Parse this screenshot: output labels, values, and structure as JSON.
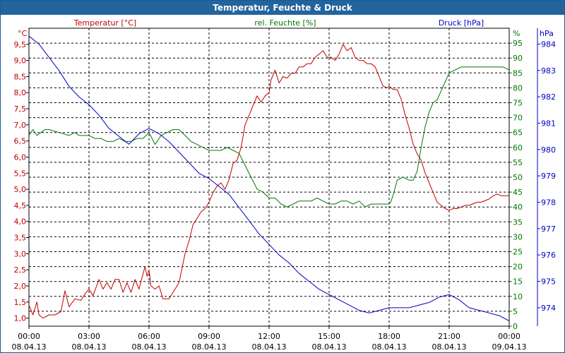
{
  "window": {
    "title": "Temperatur, Feuchte & Druck"
  },
  "colors": {
    "temperature": "#c00000",
    "humidity": "#007800",
    "pressure": "#0000c8"
  },
  "chart_data": {
    "type": "line",
    "title": "Temperatur, Feuchte & Druck",
    "legend": {
      "temperature": "Temperatur [°C]",
      "humidity": "rel. Feuchte [%]",
      "pressure": "Druck [hPa]"
    },
    "axes": {
      "left": {
        "unit": "°C",
        "min": 0.75,
        "max": 10.0,
        "ticks": [
          "1,0",
          "1,5",
          "2,0",
          "2,5",
          "3,0",
          "3,5",
          "4,0",
          "4,5",
          "5,0",
          "5,5",
          "6,0",
          "6,5",
          "7,0",
          "7,5",
          "8,0",
          "8,5",
          "9,0",
          "9,5"
        ]
      },
      "right1": {
        "unit": "%",
        "min": 0,
        "max": 100,
        "ticks": [
          "0",
          "5",
          "10",
          "15",
          "20",
          "25",
          "30",
          "35",
          "40",
          "45",
          "50",
          "55",
          "60",
          "65",
          "70",
          "75",
          "80",
          "85",
          "90",
          "95"
        ]
      },
      "right2": {
        "unit": "hPa",
        "min": 973.3,
        "max": 984.6,
        "ticks": [
          "974",
          "975",
          "976",
          "977",
          "978",
          "979",
          "980",
          "981",
          "982",
          "983",
          "984"
        ]
      },
      "x": {
        "min": 0,
        "max": 24,
        "ticks": [
          {
            "time": "00:00",
            "date": "08.04.13"
          },
          {
            "time": "03:00",
            "date": "08.04.13"
          },
          {
            "time": "06:00",
            "date": "08.04.13"
          },
          {
            "time": "09:00",
            "date": "08.04.13"
          },
          {
            "time": "12:00",
            "date": "08.04.13"
          },
          {
            "time": "15:00",
            "date": "08.04.13"
          },
          {
            "time": "18:00",
            "date": "08.04.13"
          },
          {
            "time": "21:00",
            "date": "08.04.13"
          },
          {
            "time": "00:00",
            "date": "09.04.13"
          }
        ]
      }
    },
    "series": [
      {
        "name": "Temperatur [°C]",
        "axis": "left",
        "color": "#c00000",
        "x": [
          0,
          0.2,
          0.4,
          0.5,
          0.7,
          1.0,
          1.3,
          1.6,
          1.8,
          2.0,
          2.3,
          2.6,
          2.8,
          3.0,
          3.2,
          3.5,
          3.7,
          3.9,
          4.1,
          4.3,
          4.5,
          4.7,
          4.9,
          5.1,
          5.3,
          5.5,
          5.8,
          5.9,
          6.0,
          6.1,
          6.3,
          6.5,
          6.7,
          7.0,
          7.2,
          7.5,
          7.8,
          8.0,
          8.2,
          8.4,
          8.6,
          8.8,
          9.0,
          9.2,
          9.4,
          9.6,
          9.8,
          10.0,
          10.2,
          10.4,
          10.6,
          10.8,
          11.0,
          11.2,
          11.4,
          11.6,
          11.8,
          12.0,
          12.1,
          12.3,
          12.5,
          12.7,
          12.9,
          13.1,
          13.3,
          13.5,
          13.7,
          13.9,
          14.1,
          14.3,
          14.5,
          14.7,
          14.9,
          15.1,
          15.3,
          15.5,
          15.7,
          15.9,
          16.1,
          16.3,
          16.5,
          16.7,
          16.9,
          17.1,
          17.3,
          17.5,
          17.7,
          17.9,
          18.0,
          18.2,
          18.4,
          18.6,
          18.8,
          19.0,
          19.2,
          19.4,
          19.6,
          19.8,
          20.0,
          20.2,
          20.4,
          20.6,
          20.8,
          21.0,
          21.2,
          21.4,
          21.6,
          21.8,
          22.0,
          22.2,
          22.4,
          22.6,
          22.8,
          23.0,
          23.2,
          23.4,
          23.6,
          23.8,
          24.0
        ],
        "y": [
          1.4,
          1.1,
          1.5,
          1.1,
          1.0,
          1.1,
          1.1,
          1.2,
          1.85,
          1.35,
          1.6,
          1.55,
          1.75,
          1.9,
          1.7,
          2.2,
          1.9,
          2.1,
          1.9,
          2.2,
          2.2,
          1.8,
          2.1,
          1.8,
          2.2,
          1.9,
          2.6,
          2.3,
          2.5,
          2.0,
          1.9,
          2.0,
          1.6,
          1.6,
          1.8,
          2.1,
          3.0,
          3.4,
          3.9,
          4.1,
          4.3,
          4.4,
          4.6,
          4.9,
          5.1,
          5.2,
          5.0,
          5.3,
          5.8,
          5.9,
          6.3,
          7.0,
          7.3,
          7.6,
          7.9,
          7.7,
          7.9,
          8.0,
          8.4,
          8.7,
          8.3,
          8.5,
          8.45,
          8.6,
          8.6,
          8.8,
          8.8,
          8.9,
          8.9,
          9.1,
          9.2,
          9.3,
          9.1,
          9.1,
          9.0,
          9.2,
          9.5,
          9.3,
          9.4,
          9.1,
          9.0,
          9.0,
          8.9,
          8.9,
          8.8,
          8.5,
          8.2,
          8.15,
          8.2,
          8.1,
          8.1,
          7.8,
          7.3,
          6.9,
          6.4,
          6.1,
          5.9,
          5.5,
          5.2,
          4.9,
          4.6,
          4.5,
          4.4,
          4.35,
          4.4,
          4.4,
          4.45,
          4.5,
          4.5,
          4.55,
          4.6,
          4.6,
          4.65,
          4.7,
          4.8,
          4.85,
          4.8,
          4.8,
          4.8
        ]
      },
      {
        "name": "rel. Feuchte [%]",
        "axis": "right1",
        "color": "#007800",
        "x": [
          0,
          0.2,
          0.4,
          0.6,
          0.8,
          1.0,
          1.5,
          2.0,
          2.3,
          2.5,
          2.8,
          3.0,
          3.3,
          3.6,
          3.9,
          4.2,
          4.5,
          4.8,
          5.1,
          5.4,
          5.7,
          6.0,
          6.3,
          6.6,
          6.9,
          7.2,
          7.5,
          7.8,
          8.1,
          8.4,
          8.7,
          9.0,
          9.3,
          9.6,
          9.9,
          10.2,
          10.5,
          10.8,
          11.1,
          11.4,
          11.7,
          12.0,
          12.3,
          12.6,
          12.9,
          13.2,
          13.5,
          13.8,
          14.1,
          14.4,
          14.7,
          15.0,
          15.3,
          15.6,
          15.9,
          16.2,
          16.5,
          16.8,
          17.1,
          17.4,
          17.7,
          18.0,
          18.1,
          18.2,
          18.4,
          18.7,
          19.0,
          19.2,
          19.4,
          19.6,
          19.8,
          20.0,
          20.2,
          20.4,
          20.6,
          20.8,
          21.0,
          21.3,
          21.6,
          21.9,
          22.2,
          22.5,
          22.8,
          23.1,
          23.4,
          23.7,
          24.0
        ],
        "y": [
          64,
          66,
          64,
          65,
          66,
          66,
          65,
          64,
          65,
          64,
          64,
          64,
          63,
          63,
          62,
          62,
          63,
          62,
          62,
          63,
          63,
          65,
          61,
          64,
          65,
          66,
          66,
          64,
          62,
          61,
          60,
          59,
          59,
          59,
          60,
          59,
          58,
          54,
          50,
          46,
          45,
          43,
          43,
          41,
          40,
          41,
          42,
          42,
          42,
          43,
          42,
          41,
          41,
          42,
          42,
          41,
          42,
          40,
          41,
          41,
          41,
          41,
          42,
          44,
          49,
          50,
          49,
          49,
          52,
          60,
          67,
          72,
          75,
          76,
          79,
          82,
          85,
          86,
          87,
          87,
          87,
          87,
          87,
          87,
          87,
          87,
          86
        ]
      },
      {
        "name": "Druck [hPa]",
        "axis": "right2",
        "color": "#0000c8",
        "x": [
          0,
          0.5,
          1.0,
          1.5,
          2.0,
          2.5,
          3.0,
          3.5,
          4.0,
          4.5,
          5.0,
          5.5,
          6.0,
          6.5,
          7.0,
          7.5,
          8.0,
          8.5,
          9.0,
          9.5,
          10.0,
          10.5,
          11.0,
          11.5,
          12.0,
          12.5,
          13.0,
          13.5,
          14.0,
          14.5,
          15.0,
          15.5,
          16.0,
          16.5,
          17.0,
          17.5,
          18.0,
          18.5,
          19.0,
          19.5,
          20.0,
          20.5,
          21.0,
          21.5,
          22.0,
          22.5,
          23.0,
          23.5,
          24.0
        ],
        "y": [
          984.3,
          984.0,
          983.5,
          983.0,
          982.4,
          982.0,
          981.7,
          981.3,
          980.8,
          980.5,
          980.2,
          980.6,
          980.8,
          980.6,
          980.3,
          979.9,
          979.5,
          979.1,
          978.9,
          978.6,
          978.3,
          977.8,
          977.3,
          976.8,
          976.4,
          976.0,
          975.7,
          975.3,
          975.0,
          974.7,
          974.5,
          974.3,
          974.1,
          973.9,
          973.8,
          973.9,
          974.0,
          974.0,
          974.0,
          974.1,
          974.2,
          974.4,
          974.5,
          974.3,
          974.0,
          973.9,
          973.8,
          973.7,
          973.5
        ]
      }
    ]
  }
}
